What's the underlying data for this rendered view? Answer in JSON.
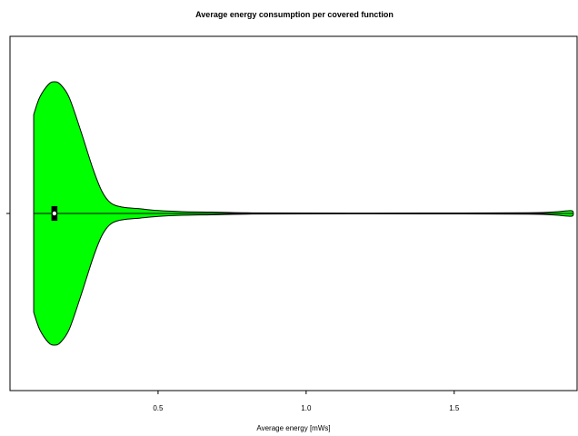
{
  "chart_data": {
    "type": "violin",
    "title": "Average energy consumption per covered function",
    "xlabel": "Average energy [mWs]",
    "ylabel": "",
    "xlim": [
      0.0,
      1.915
    ],
    "x_ticks": [
      0.5,
      1.0,
      1.5
    ],
    "x_tick_labels": [
      "0.5",
      "1.0",
      "1.5"
    ],
    "grid": false,
    "fill_color": "#00ff00",
    "outline_color": "#000000",
    "series": [
      {
        "data_range": [
          0.08,
          1.9
        ],
        "median": 0.15,
        "quartiles": [
          0.14,
          0.16
        ],
        "density_profile": [
          {
            "x": 0.08,
            "rel_width": 0.75
          },
          {
            "x": 0.1,
            "rel_width": 0.88
          },
          {
            "x": 0.13,
            "rel_width": 0.98
          },
          {
            "x": 0.15,
            "rel_width": 1.0
          },
          {
            "x": 0.17,
            "rel_width": 0.98
          },
          {
            "x": 0.2,
            "rel_width": 0.88
          },
          {
            "x": 0.24,
            "rel_width": 0.62
          },
          {
            "x": 0.28,
            "rel_width": 0.34
          },
          {
            "x": 0.31,
            "rel_width": 0.17
          },
          {
            "x": 0.34,
            "rel_width": 0.08
          },
          {
            "x": 0.38,
            "rel_width": 0.048
          },
          {
            "x": 0.44,
            "rel_width": 0.035
          },
          {
            "x": 0.5,
            "rel_width": 0.022
          },
          {
            "x": 0.58,
            "rel_width": 0.014
          },
          {
            "x": 0.68,
            "rel_width": 0.01
          },
          {
            "x": 0.8,
            "rel_width": 0.005
          },
          {
            "x": 1.0,
            "rel_width": 0.003
          },
          {
            "x": 1.4,
            "rel_width": 0.003
          },
          {
            "x": 1.75,
            "rel_width": 0.005
          },
          {
            "x": 1.84,
            "rel_width": 0.012
          },
          {
            "x": 1.88,
            "rel_width": 0.02
          },
          {
            "x": 1.9,
            "rel_width": 0.018
          }
        ]
      }
    ]
  }
}
